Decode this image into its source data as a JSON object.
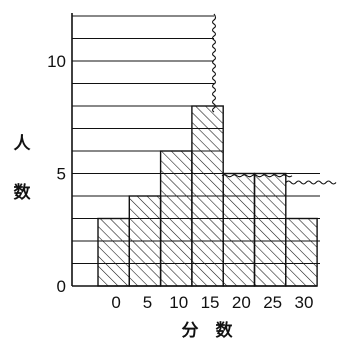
{
  "chart_data": {
    "type": "bar",
    "title": "",
    "xlabel": "分　数",
    "ylabel_chars": [
      "人",
      "数"
    ],
    "categories": [
      "0",
      "5",
      "10",
      "15",
      "20",
      "25",
      "30"
    ],
    "values": [
      3,
      4,
      6,
      8,
      5,
      5,
      3
    ],
    "y_ticks": [
      0,
      5,
      10
    ],
    "ylim": [
      0,
      12
    ],
    "grid": "horizontal lines at every 1 unit",
    "bar_fill": "diagonal hatching",
    "colors": {
      "ink": "#111111",
      "background": "#ffffff"
    }
  }
}
